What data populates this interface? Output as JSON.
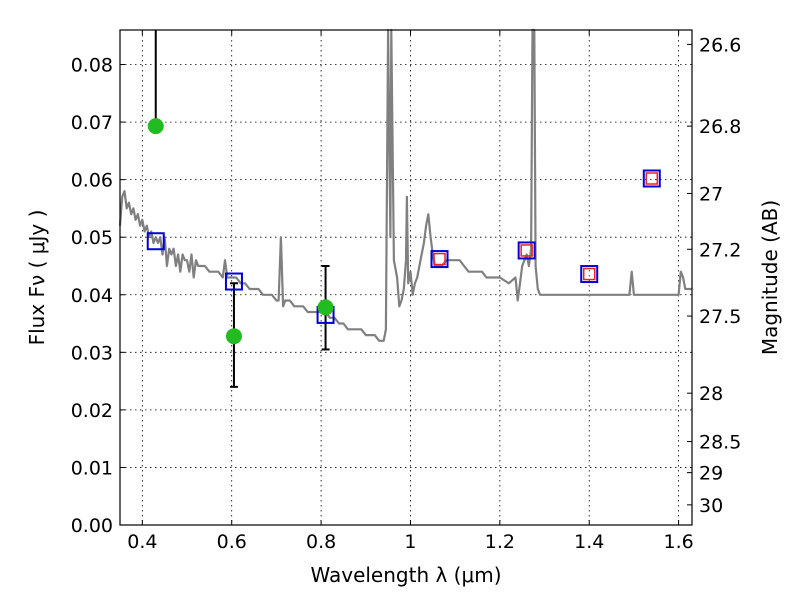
{
  "chart_data": {
    "type": "scatter",
    "xlabel": "Wavelength  λ (μm)",
    "ylabel": "Flux  Fν  ( μJy )",
    "ylabel_right": "Magnitude (AB)",
    "xlim": [
      0.35,
      1.63
    ],
    "ylim": [
      0.0,
      0.086
    ],
    "grid": true,
    "x_ticks": [
      {
        "value": 0.4,
        "label": "0.4"
      },
      {
        "value": 0.6,
        "label": "0.6"
      },
      {
        "value": 0.8,
        "label": "0.8"
      },
      {
        "value": 1.0,
        "label": "1"
      },
      {
        "value": 1.2,
        "label": "1.2"
      },
      {
        "value": 1.4,
        "label": "1.4"
      },
      {
        "value": 1.6,
        "label": "1.6"
      }
    ],
    "y_ticks": [
      {
        "value": 0.0,
        "label": "0.00"
      },
      {
        "value": 0.01,
        "label": "0.01"
      },
      {
        "value": 0.02,
        "label": "0.02"
      },
      {
        "value": 0.03,
        "label": "0.03"
      },
      {
        "value": 0.04,
        "label": "0.04"
      },
      {
        "value": 0.05,
        "label": "0.05"
      },
      {
        "value": 0.06,
        "label": "0.06"
      },
      {
        "value": 0.07,
        "label": "0.07"
      },
      {
        "value": 0.08,
        "label": "0.08"
      }
    ],
    "right_ticks": [
      {
        "flux": 0.0835,
        "label": "26.6"
      },
      {
        "flux": 0.0693,
        "label": "26.8"
      },
      {
        "flux": 0.0576,
        "label": "27"
      },
      {
        "flux": 0.0479,
        "label": "27.2"
      },
      {
        "flux": 0.0363,
        "label": "27.5"
      },
      {
        "flux": 0.0229,
        "label": "28"
      },
      {
        "flux": 0.0145,
        "label": "28.5"
      },
      {
        "flux": 0.0091,
        "label": "29"
      },
      {
        "flux": 0.0035,
        "label": "30"
      }
    ],
    "series": [
      {
        "kind": "spectrum",
        "color": "#808080",
        "points": [
          [
            0.35,
            0.052
          ],
          [
            0.355,
            0.057
          ],
          [
            0.36,
            0.058
          ],
          [
            0.365,
            0.055
          ],
          [
            0.37,
            0.056
          ],
          [
            0.375,
            0.054
          ],
          [
            0.38,
            0.055
          ],
          [
            0.385,
            0.053
          ],
          [
            0.39,
            0.054
          ],
          [
            0.395,
            0.052
          ],
          [
            0.4,
            0.053
          ],
          [
            0.405,
            0.051
          ],
          [
            0.41,
            0.052
          ],
          [
            0.415,
            0.05
          ],
          [
            0.42,
            0.051
          ],
          [
            0.425,
            0.049
          ],
          [
            0.43,
            0.05
          ],
          [
            0.435,
            0.049
          ],
          [
            0.44,
            0.05
          ],
          [
            0.445,
            0.047
          ],
          [
            0.45,
            0.05
          ],
          [
            0.455,
            0.045
          ],
          [
            0.46,
            0.048
          ],
          [
            0.465,
            0.047
          ],
          [
            0.47,
            0.048
          ],
          [
            0.475,
            0.045
          ],
          [
            0.48,
            0.047
          ],
          [
            0.485,
            0.044
          ],
          [
            0.49,
            0.047
          ],
          [
            0.495,
            0.046
          ],
          [
            0.5,
            0.046
          ],
          [
            0.505,
            0.044
          ],
          [
            0.51,
            0.047
          ],
          [
            0.515,
            0.043
          ],
          [
            0.52,
            0.046
          ],
          [
            0.525,
            0.045
          ],
          [
            0.53,
            0.045
          ],
          [
            0.54,
            0.045
          ],
          [
            0.55,
            0.044
          ],
          [
            0.56,
            0.044
          ],
          [
            0.57,
            0.044
          ],
          [
            0.58,
            0.043
          ],
          [
            0.585,
            0.046
          ],
          [
            0.59,
            0.043
          ],
          [
            0.6,
            0.043
          ],
          [
            0.61,
            0.043
          ],
          [
            0.62,
            0.042
          ],
          [
            0.63,
            0.042
          ],
          [
            0.64,
            0.041
          ],
          [
            0.65,
            0.041
          ],
          [
            0.66,
            0.041
          ],
          [
            0.67,
            0.04
          ],
          [
            0.68,
            0.04
          ],
          [
            0.69,
            0.04
          ],
          [
            0.7,
            0.039
          ],
          [
            0.705,
            0.039
          ],
          [
            0.71,
            0.05
          ],
          [
            0.715,
            0.038
          ],
          [
            0.72,
            0.039
          ],
          [
            0.73,
            0.039
          ],
          [
            0.74,
            0.038
          ],
          [
            0.75,
            0.038
          ],
          [
            0.76,
            0.038
          ],
          [
            0.77,
            0.037
          ],
          [
            0.78,
            0.037
          ],
          [
            0.79,
            0.037
          ],
          [
            0.8,
            0.037
          ],
          [
            0.81,
            0.037
          ],
          [
            0.82,
            0.036
          ],
          [
            0.83,
            0.036
          ],
          [
            0.84,
            0.035
          ],
          [
            0.85,
            0.035
          ],
          [
            0.86,
            0.034
          ],
          [
            0.87,
            0.034
          ],
          [
            0.88,
            0.034
          ],
          [
            0.89,
            0.034
          ],
          [
            0.9,
            0.033
          ],
          [
            0.91,
            0.033
          ],
          [
            0.92,
            0.033
          ],
          [
            0.93,
            0.032
          ],
          [
            0.94,
            0.032
          ],
          [
            0.945,
            0.034
          ],
          [
            0.95,
            0.087
          ],
          [
            0.955,
            0.05
          ],
          [
            0.957,
            0.087
          ],
          [
            0.963,
            0.046
          ],
          [
            0.97,
            0.043
          ],
          [
            0.975,
            0.038
          ],
          [
            0.98,
            0.039
          ],
          [
            0.985,
            0.041
          ],
          [
            0.99,
            0.046
          ],
          [
            0.992,
            0.057
          ],
          [
            0.995,
            0.042
          ],
          [
            1.0,
            0.044
          ],
          [
            1.005,
            0.04
          ],
          [
            1.01,
            0.042
          ],
          [
            1.015,
            0.043
          ],
          [
            1.02,
            0.045
          ],
          [
            1.025,
            0.047
          ],
          [
            1.03,
            0.049
          ],
          [
            1.035,
            0.052
          ],
          [
            1.04,
            0.054
          ],
          [
            1.045,
            0.05
          ],
          [
            1.05,
            0.047
          ],
          [
            1.055,
            0.045
          ],
          [
            1.06,
            0.045
          ],
          [
            1.07,
            0.045
          ],
          [
            1.08,
            0.046
          ],
          [
            1.09,
            0.046
          ],
          [
            1.1,
            0.046
          ],
          [
            1.11,
            0.046
          ],
          [
            1.12,
            0.045
          ],
          [
            1.13,
            0.044
          ],
          [
            1.14,
            0.044
          ],
          [
            1.15,
            0.044
          ],
          [
            1.16,
            0.044
          ],
          [
            1.17,
            0.043
          ],
          [
            1.18,
            0.043
          ],
          [
            1.19,
            0.043
          ],
          [
            1.2,
            0.043
          ],
          [
            1.22,
            0.042
          ],
          [
            1.235,
            0.043
          ],
          [
            1.24,
            0.039
          ],
          [
            1.245,
            0.042
          ],
          [
            1.25,
            0.045
          ],
          [
            1.26,
            0.047
          ],
          [
            1.265,
            0.045
          ],
          [
            1.27,
            0.048
          ],
          [
            1.273,
            0.087
          ],
          [
            1.277,
            0.087
          ],
          [
            1.28,
            0.045
          ],
          [
            1.285,
            0.041
          ],
          [
            1.29,
            0.04
          ],
          [
            1.3,
            0.04
          ],
          [
            1.32,
            0.04
          ],
          [
            1.34,
            0.04
          ],
          [
            1.36,
            0.04
          ],
          [
            1.38,
            0.04
          ],
          [
            1.4,
            0.04
          ],
          [
            1.42,
            0.04
          ],
          [
            1.44,
            0.04
          ],
          [
            1.46,
            0.04
          ],
          [
            1.48,
            0.04
          ],
          [
            1.49,
            0.04
          ],
          [
            1.495,
            0.044
          ],
          [
            1.5,
            0.04
          ],
          [
            1.52,
            0.04
          ],
          [
            1.54,
            0.04
          ],
          [
            1.56,
            0.04
          ],
          [
            1.58,
            0.04
          ],
          [
            1.59,
            0.04
          ],
          [
            1.6,
            0.04
          ],
          [
            1.605,
            0.044
          ],
          [
            1.61,
            0.043
          ],
          [
            1.615,
            0.041
          ],
          [
            1.62,
            0.041
          ],
          [
            1.63,
            0.041
          ]
        ]
      },
      {
        "kind": "observed",
        "color": "#22bb22",
        "points": [
          {
            "x": 0.43,
            "y": 0.0693,
            "yerr_low": 0.0693,
            "yerr_high": 0.0862
          },
          {
            "x": 0.605,
            "y": 0.0328,
            "yerr_low": 0.024,
            "yerr_high": 0.042
          },
          {
            "x": 0.81,
            "y": 0.0378,
            "yerr_low": 0.0305,
            "yerr_high": 0.045
          }
        ]
      },
      {
        "kind": "model-band",
        "color": "#0000dd",
        "points": [
          {
            "x": 0.43,
            "y": 0.0493
          },
          {
            "x": 0.605,
            "y": 0.0423
          },
          {
            "x": 0.81,
            "y": 0.0365
          },
          {
            "x": 1.065,
            "y": 0.0462
          },
          {
            "x": 1.26,
            "y": 0.0477
          },
          {
            "x": 1.4,
            "y": 0.0436
          },
          {
            "x": 1.54,
            "y": 0.0602
          }
        ]
      },
      {
        "kind": "model-band-inner",
        "color": "#ee2222",
        "points": [
          {
            "x": 1.065,
            "y": 0.0462
          },
          {
            "x": 1.26,
            "y": 0.0477
          },
          {
            "x": 1.4,
            "y": 0.0436
          },
          {
            "x": 1.54,
            "y": 0.0602
          }
        ]
      }
    ]
  }
}
